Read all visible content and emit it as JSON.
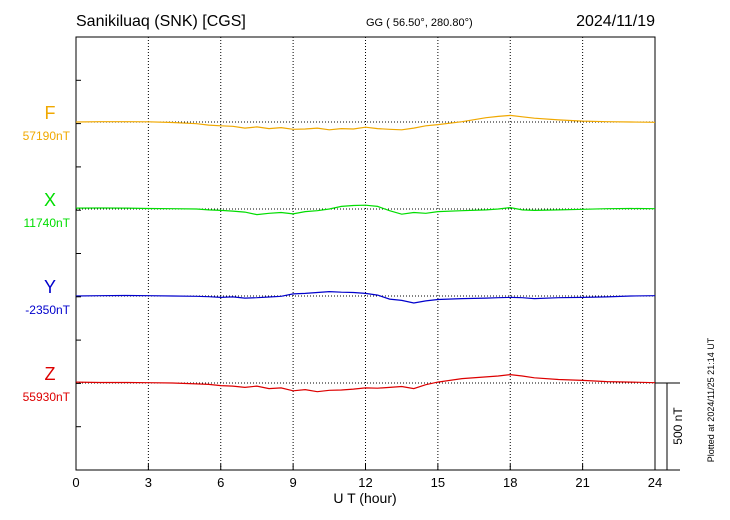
{
  "header": {
    "station": "Sanikiluaq (SNK)  [CGS]",
    "coords": "GG ( 56.50°, 280.80°)",
    "date": "2024/11/19"
  },
  "footer": {
    "plotted_at": "Plotted at 2024/11/25 21:14 UT"
  },
  "chart_data": {
    "type": "line",
    "xlabel": "U T (hour)",
    "xlim": [
      0,
      24
    ],
    "x_ticks": [
      0,
      3,
      6,
      9,
      12,
      15,
      18,
      21,
      24
    ],
    "x_tick_labels": [
      "0",
      "3",
      "6",
      "9",
      "12",
      "15",
      "18",
      "21",
      "24"
    ],
    "grid": true,
    "scale_bar": {
      "label": "500 nT",
      "value_nT": 500
    },
    "colors": {
      "F": "#f0a800",
      "X": "#00dd00",
      "Y": "#0000cc",
      "Z": "#dd0000"
    },
    "series": [
      {
        "name": "F",
        "baseline_label": "57190nT",
        "baseline_nT": 57190,
        "x": [
          0,
          1,
          2,
          3,
          4,
          5,
          5.5,
          6,
          6.5,
          7,
          7.5,
          8,
          8.5,
          9,
          9.5,
          10,
          10.5,
          11,
          11.5,
          12,
          12.5,
          13,
          13.5,
          14,
          14.5,
          15,
          16,
          17,
          17.5,
          18,
          18.5,
          19,
          20,
          21,
          22,
          23,
          24
        ],
        "y": [
          0,
          2,
          2,
          1,
          -3,
          -10,
          -18,
          -22,
          -25,
          -35,
          -28,
          -38,
          -32,
          -42,
          -40,
          -35,
          -45,
          -38,
          -40,
          -30,
          -38,
          -42,
          -45,
          -35,
          -22,
          -15,
          2,
          25,
          32,
          38,
          30,
          22,
          12,
          5,
          2,
          0,
          -2
        ]
      },
      {
        "name": "X",
        "baseline_label": "11740nT",
        "baseline_nT": 11740,
        "x": [
          0,
          1,
          2,
          3,
          4,
          5,
          5.5,
          6,
          6.5,
          7,
          7.5,
          8,
          8.5,
          9,
          9.5,
          10,
          10.5,
          11,
          11.5,
          12,
          12.5,
          13,
          13.5,
          14,
          14.5,
          15,
          16,
          17,
          17.5,
          18,
          18.5,
          19,
          20,
          21,
          22,
          23,
          24
        ],
        "y": [
          5,
          6,
          5,
          3,
          2,
          0,
          -5,
          -8,
          -12,
          -18,
          -32,
          -25,
          -20,
          -28,
          -15,
          -10,
          0,
          15,
          20,
          22,
          15,
          -10,
          -30,
          -20,
          -25,
          -15,
          -10,
          -5,
          0,
          8,
          -5,
          -8,
          -5,
          -2,
          2,
          3,
          2
        ]
      },
      {
        "name": "Y",
        "baseline_label": "-2350nT",
        "baseline_nT": -2350,
        "x": [
          0,
          1,
          2,
          3,
          4,
          5,
          5.5,
          6,
          6.5,
          7,
          7.5,
          8,
          8.5,
          9,
          9.5,
          10,
          10.5,
          11,
          11.5,
          12,
          12.5,
          13,
          13.5,
          14,
          14.5,
          15,
          16,
          17,
          17.5,
          18,
          18.5,
          19,
          20,
          21,
          22,
          23,
          24
        ],
        "y": [
          0,
          2,
          3,
          2,
          0,
          -2,
          -4,
          -8,
          -5,
          -12,
          -10,
          -6,
          -2,
          12,
          15,
          20,
          25,
          22,
          20,
          15,
          5,
          -18,
          -25,
          -40,
          -28,
          -20,
          -15,
          -12,
          -10,
          -8,
          -10,
          -15,
          -10,
          -8,
          -5,
          0,
          2
        ]
      },
      {
        "name": "Z",
        "baseline_label": "55930nT",
        "baseline_nT": 55930,
        "x": [
          0,
          1,
          2,
          3,
          4,
          5,
          5.5,
          6,
          6.5,
          7,
          7.5,
          8,
          8.5,
          9,
          9.5,
          10,
          10.5,
          11,
          11.5,
          12,
          12.5,
          13,
          13.5,
          14,
          14.5,
          15,
          16,
          17,
          17.5,
          18,
          18.5,
          19,
          20,
          21,
          22,
          23,
          24
        ],
        "y": [
          5,
          3,
          3,
          2,
          0,
          -5,
          -8,
          -15,
          -18,
          -25,
          -18,
          -32,
          -28,
          -45,
          -38,
          -50,
          -42,
          -40,
          -35,
          -28,
          -30,
          -25,
          -20,
          -32,
          -10,
          5,
          25,
          35,
          40,
          48,
          40,
          30,
          20,
          15,
          8,
          5,
          2
        ]
      }
    ]
  }
}
